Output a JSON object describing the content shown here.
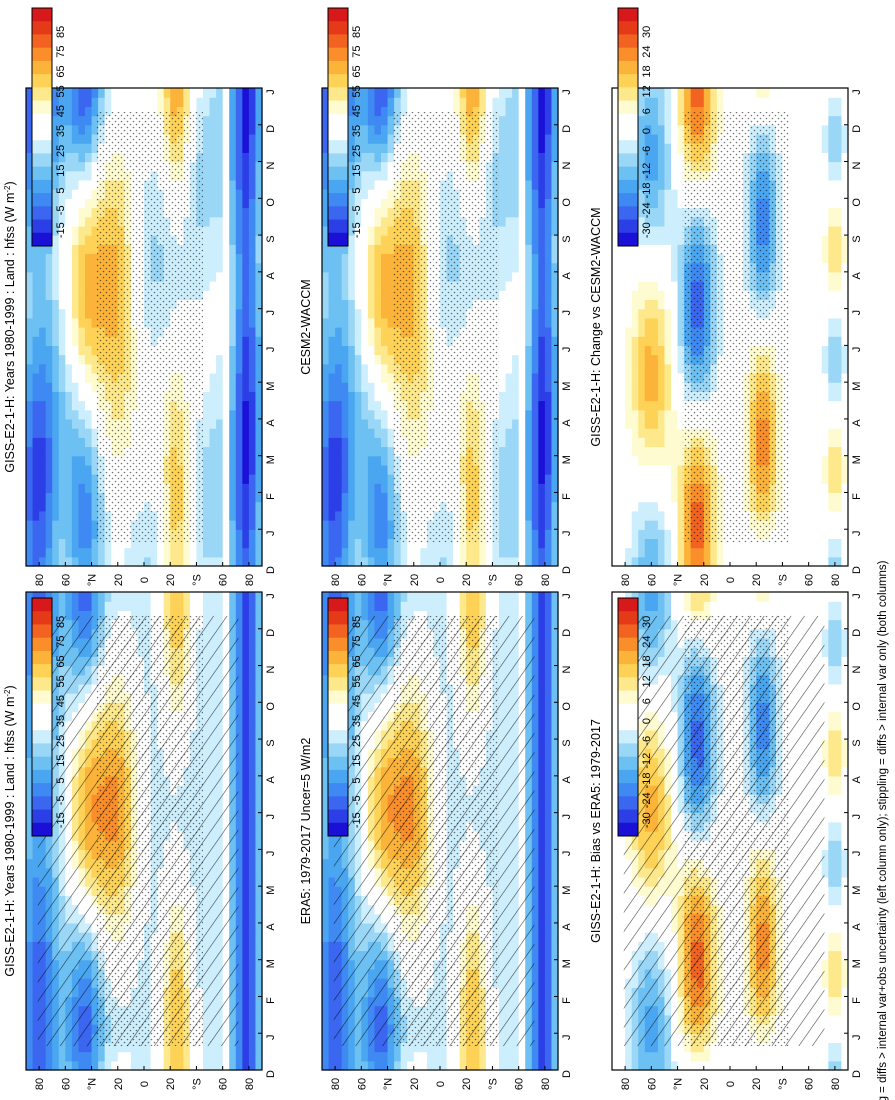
{
  "figure": {
    "footnote": "hatching = diffs > internal var+obs uncertainty (left column only); stippling = diffs > internal var only (both columns)"
  },
  "palettes": {
    "sequential": [
      "#1a10d6",
      "#2c3fe6",
      "#3a66f0",
      "#3f8af2",
      "#4aa6f0",
      "#6cc0f2",
      "#9ad6f6",
      "#cdeefc",
      "#ffffff",
      "#ffffff",
      "#fffbd0",
      "#fde98c",
      "#fdd257",
      "#fbb33a",
      "#f98e2b",
      "#f26321",
      "#e53a17",
      "#d7191c"
    ],
    "diverging": [
      "#1a10d6",
      "#2c3fe6",
      "#3a66f0",
      "#3f8af2",
      "#4aa6f0",
      "#6cc0f2",
      "#9ad6f6",
      "#cdeefc",
      "#ffffff",
      "#ffffff",
      "#fffbd0",
      "#fde98c",
      "#fdd257",
      "#fbb33a",
      "#f98e2b",
      "#f26321",
      "#e53a17",
      "#d7191c"
    ]
  },
  "chart_data": [
    {
      "type": "heatmap",
      "title": "GISS-E2-1-H: Years 1980-1999 : Land : hfss (W m",
      "title_sup": "-2",
      "title_end": ")",
      "x_ticks": [
        "D",
        "J",
        "F",
        "M",
        "A",
        "M",
        "J",
        "J",
        "A",
        "S",
        "O",
        "N",
        "D",
        "J"
      ],
      "y_ticks": [
        "80",
        "60",
        "°N",
        "20",
        "0",
        "20",
        "°S",
        "60",
        "80"
      ],
      "colorbar": [
        "85",
        "75",
        "65",
        "55",
        "45",
        "35",
        "25",
        "15",
        "5",
        "-5",
        "-15"
      ],
      "palette": "sequential",
      "hatching": true,
      "stippling": true,
      "value_range": [
        -20,
        90
      ],
      "y_range": [
        -90,
        90
      ]
    },
    {
      "type": "heatmap",
      "title": "GISS-E2-1-H: Years 1980-1999 : Land : hfss (W m",
      "title_sup": "-2",
      "title_end": ")",
      "x_ticks": [
        "D",
        "J",
        "F",
        "M",
        "A",
        "M",
        "J",
        "J",
        "A",
        "S",
        "O",
        "N",
        "D",
        "J"
      ],
      "y_ticks": [
        "80",
        "60",
        "°N",
        "20",
        "0",
        "20",
        "°S",
        "60",
        "80"
      ],
      "colorbar": [
        "85",
        "75",
        "65",
        "55",
        "45",
        "35",
        "25",
        "15",
        "5",
        "-5",
        "-15"
      ],
      "palette": "sequential",
      "hatching": false,
      "stippling": true,
      "value_range": [
        -20,
        90
      ],
      "y_range": [
        -90,
        90
      ]
    },
    {
      "type": "heatmap",
      "title": "ERA5: 1979-2017 Uncer=5 W/m2",
      "title_sup": "",
      "title_end": "",
      "x_ticks": [
        "D",
        "J",
        "F",
        "M",
        "A",
        "M",
        "J",
        "J",
        "A",
        "S",
        "O",
        "N",
        "D",
        "J"
      ],
      "y_ticks": [
        "80",
        "60",
        "°N",
        "20",
        "0",
        "20",
        "°S",
        "60",
        "80"
      ],
      "colorbar": [
        "85",
        "75",
        "65",
        "55",
        "45",
        "35",
        "25",
        "15",
        "5",
        "-5",
        "-15"
      ],
      "palette": "sequential",
      "hatching": true,
      "stippling": true,
      "value_range": [
        -20,
        90
      ],
      "y_range": [
        -90,
        90
      ]
    },
    {
      "type": "heatmap",
      "title": "CESM2-WACCM",
      "title_sup": "",
      "title_end": "",
      "x_ticks": [
        "D",
        "J",
        "F",
        "M",
        "A",
        "M",
        "J",
        "J",
        "A",
        "S",
        "O",
        "N",
        "D",
        "J"
      ],
      "y_ticks": [
        "80",
        "60",
        "°N",
        "20",
        "0",
        "20",
        "°S",
        "60",
        "80"
      ],
      "colorbar": [
        "85",
        "75",
        "65",
        "55",
        "45",
        "35",
        "25",
        "15",
        "5",
        "-5",
        "-15"
      ],
      "palette": "sequential",
      "hatching": false,
      "stippling": true,
      "value_range": [
        -20,
        90
      ],
      "y_range": [
        -90,
        90
      ]
    },
    {
      "type": "heatmap",
      "title": "GISS-E2-1-H: Bias vs ERA5: 1979-2017",
      "title_sup": "",
      "title_end": "",
      "x_ticks": [
        "D",
        "J",
        "F",
        "M",
        "A",
        "M",
        "J",
        "J",
        "A",
        "S",
        "O",
        "N",
        "D",
        "J"
      ],
      "y_ticks": [
        "80",
        "60",
        "°N",
        "20",
        "0",
        "20",
        "°S",
        "60",
        "80"
      ],
      "colorbar": [
        "30",
        "24",
        "18",
        "12",
        "6",
        "0",
        "-6",
        "-12",
        "-18",
        "-24",
        "-30"
      ],
      "palette": "diverging",
      "hatching": true,
      "stippling": true,
      "value_range": [
        -33,
        33
      ],
      "y_range": [
        -90,
        90
      ]
    },
    {
      "type": "heatmap",
      "title": "GISS-E2-1-H: Change vs CESM2-WACCM",
      "title_sup": "",
      "title_end": "",
      "x_ticks": [
        "D",
        "J",
        "F",
        "M",
        "A",
        "M",
        "J",
        "J",
        "A",
        "S",
        "O",
        "N",
        "D",
        "J"
      ],
      "y_ticks": [
        "80",
        "60",
        "°N",
        "20",
        "0",
        "20",
        "°S",
        "60",
        "80"
      ],
      "colorbar": [
        "30",
        "24",
        "18",
        "12",
        "6",
        "0",
        "-6",
        "-12",
        "-18",
        "-24",
        "-30"
      ],
      "palette": "diverging",
      "hatching": false,
      "stippling": true,
      "value_range": [
        -33,
        33
      ],
      "y_range": [
        -90,
        90
      ]
    }
  ]
}
